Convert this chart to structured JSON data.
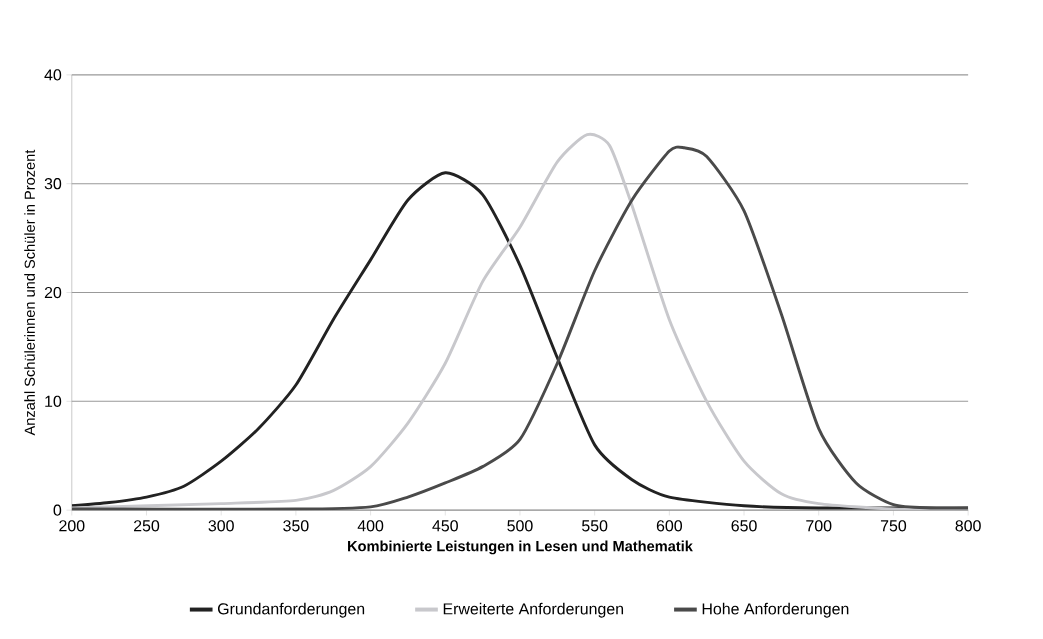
{
  "chart_data": {
    "type": "line",
    "xlabel": "Kombinierte Leistungen in Lesen und Mathematik",
    "ylabel": "Anzahl Schülerinnen und Schüler in Prozent",
    "xlim": [
      200,
      800
    ],
    "xticks": [
      200,
      250,
      300,
      350,
      400,
      450,
      500,
      550,
      600,
      650,
      700,
      750,
      800
    ],
    "ylim": [
      0,
      40
    ],
    "yticks": [
      0,
      10,
      20,
      30,
      40
    ],
    "grid": "y",
    "legend": "bottom",
    "series": [
      {
        "name": "Grundanforderungen",
        "color": "#222222",
        "x": [
          200,
          225,
          250,
          275,
          300,
          325,
          350,
          375,
          400,
          425,
          450,
          475,
          500,
          525,
          550,
          575,
          600,
          650,
          700,
          800
        ],
        "values": [
          0.4,
          0.7,
          1.2,
          2.2,
          4.5,
          7.5,
          11.5,
          17.5,
          23,
          28.5,
          31,
          29,
          22.5,
          14,
          6,
          2.8,
          1.2,
          0.4,
          0.2,
          0.2
        ]
      },
      {
        "name": "Erweiterte Anforderungen",
        "color": "#c8c8cc",
        "x": [
          200,
          300,
          350,
          375,
          400,
          425,
          450,
          475,
          500,
          525,
          545,
          560,
          575,
          600,
          625,
          650,
          675,
          700,
          750,
          800
        ],
        "values": [
          0.2,
          0.6,
          0.9,
          1.8,
          4,
          8,
          13.5,
          21,
          26,
          32,
          34.5,
          33.5,
          28,
          17.5,
          10,
          4.5,
          1.5,
          0.6,
          0.1,
          0.1
        ]
      },
      {
        "name": "Hohe Anforderungen",
        "color": "#4a4a4a",
        "x": [
          200,
          350,
          400,
          425,
          450,
          475,
          500,
          525,
          550,
          575,
          600,
          610,
          625,
          650,
          675,
          700,
          725,
          750,
          775,
          800
        ],
        "values": [
          0.1,
          0.1,
          0.3,
          1.2,
          2.5,
          4,
          6.5,
          13.5,
          22,
          28.5,
          33,
          33.3,
          32.5,
          27.5,
          18,
          7.5,
          2.5,
          0.5,
          0.2,
          0.2
        ]
      }
    ]
  }
}
